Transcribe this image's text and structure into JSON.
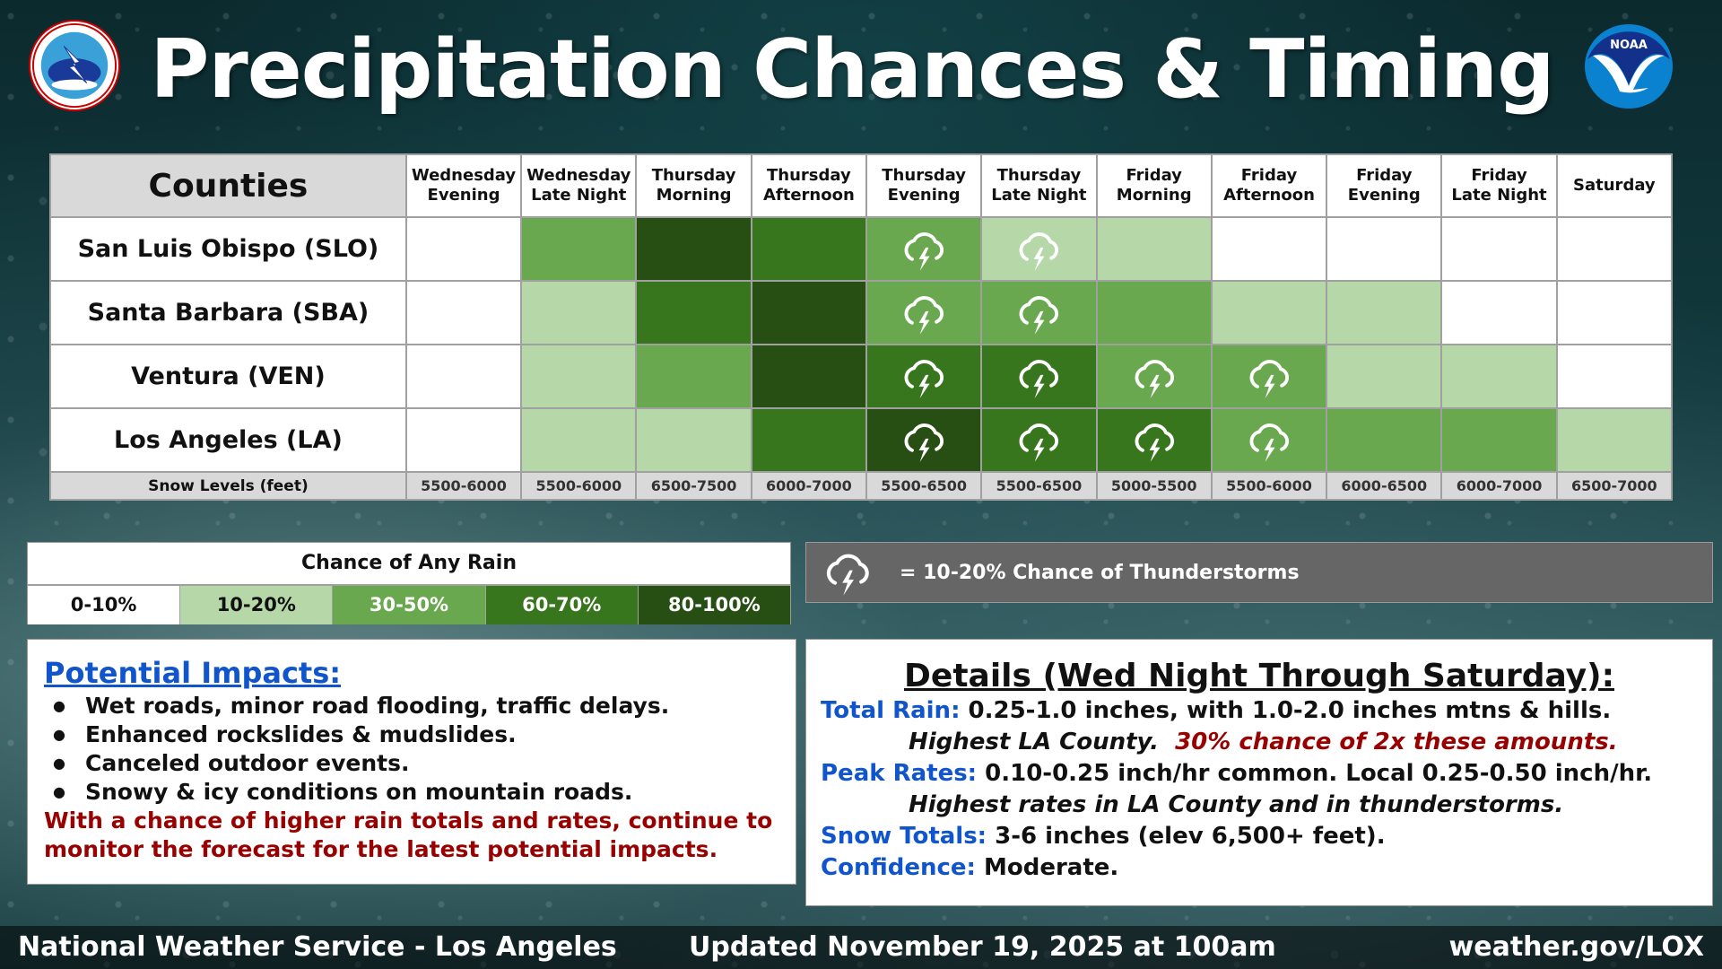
{
  "header": {
    "title": "Precipitation Chances & Timing",
    "left_logo": "nws-logo-icon",
    "right_logo": "noaa-logo-icon",
    "nws_logo_text": "NATIONAL WEATHER SERVICE",
    "noaa_logo_text": "NOAA"
  },
  "colors": {
    "level_0": "#ffffff",
    "level_1": "#b6d7a8",
    "level_2": "#6aa84f",
    "level_3": "#38761d",
    "level_4": "#274e13",
    "label_blue": "#1155cc",
    "warning_red": "#990000",
    "ts_legend_bg": "#666666"
  },
  "table": {
    "counties_header": "Counties",
    "periods": [
      {
        "line1": "Wednesday",
        "line2": "Evening"
      },
      {
        "line1": "Wednesday",
        "line2": "Late Night"
      },
      {
        "line1": "Thursday",
        "line2": "Morning"
      },
      {
        "line1": "Thursday",
        "line2": "Afternoon"
      },
      {
        "line1": "Thursday",
        "line2": "Evening"
      },
      {
        "line1": "Thursday",
        "line2": "Late Night"
      },
      {
        "line1": "Friday",
        "line2": "Morning"
      },
      {
        "line1": "Friday",
        "line2": "Afternoon"
      },
      {
        "line1": "Friday",
        "line2": "Evening"
      },
      {
        "line1": "Friday",
        "line2": "Late Night"
      },
      {
        "line1": "Saturday",
        "line2": ""
      }
    ],
    "rows": [
      {
        "county": "San Luis Obispo (SLO)",
        "levels": [
          0,
          2,
          4,
          3,
          2,
          1,
          1,
          0,
          0,
          0,
          0
        ],
        "tstorm": [
          0,
          0,
          0,
          0,
          1,
          1,
          0,
          0,
          0,
          0,
          0
        ]
      },
      {
        "county": "Santa Barbara (SBA)",
        "levels": [
          0,
          1,
          3,
          4,
          2,
          2,
          2,
          1,
          1,
          0,
          0
        ],
        "tstorm": [
          0,
          0,
          0,
          0,
          1,
          1,
          0,
          0,
          0,
          0,
          0
        ]
      },
      {
        "county": "Ventura (VEN)",
        "levels": [
          0,
          1,
          2,
          4,
          3,
          3,
          2,
          2,
          1,
          1,
          0
        ],
        "tstorm": [
          0,
          0,
          0,
          0,
          1,
          1,
          1,
          1,
          0,
          0,
          0
        ]
      },
      {
        "county": "Los Angeles (LA)",
        "levels": [
          0,
          1,
          1,
          3,
          4,
          3,
          3,
          2,
          2,
          2,
          1
        ],
        "tstorm": [
          0,
          0,
          0,
          0,
          1,
          1,
          1,
          1,
          0,
          0,
          0
        ]
      }
    ],
    "snow_label": "Snow Levels (feet)",
    "snow_levels": [
      "5500-6000",
      "5500-6000",
      "6500-7500",
      "6000-7000",
      "5500-6500",
      "5500-6500",
      "5000-5500",
      "5500-6000",
      "6000-6500",
      "6000-7000",
      "6500-7000"
    ]
  },
  "legend": {
    "title": "Chance of Any Rain",
    "items": [
      "0-10%",
      "10-20%",
      "30-50%",
      "60-70%",
      "80-100%"
    ]
  },
  "tstorm_legend": {
    "icon": "thunderstorm-icon",
    "text": "= 10-20% Chance of Thunderstorms"
  },
  "impacts": {
    "title": "Potential Impacts:",
    "bullets": [
      "Wet roads, minor road flooding, traffic delays.",
      "Enhanced rockslides & mudslides.",
      "Canceled outdoor events.",
      "Snowy & icy conditions on mountain roads."
    ],
    "warning": "With a chance of higher rain totals and rates, continue to monitor the forecast for the latest potential impacts."
  },
  "details": {
    "title": "Details (Wed Night Through Saturday):",
    "total_rain_label": "Total Rain:",
    "total_rain_value": " 0.25-1.0 inches, with 1.0-2.0 inches mtns & hills.",
    "total_rain_note": "Highest LA County.",
    "total_rain_note_red": "30% chance of 2x these amounts.",
    "peak_rates_label": "Peak Rates:",
    "peak_rates_value": " 0.10-0.25 inch/hr common. Local 0.25-0.50 inch/hr.",
    "peak_rates_note": "Highest rates in LA County and in thunderstorms.",
    "snow_totals_label": "Snow Totals:",
    "snow_totals_value": " 3-6 inches (elev 6,500+ feet).",
    "confidence_label": "Confidence:",
    "confidence_value": " Moderate."
  },
  "footer": {
    "office": "National Weather Service - Los Angeles",
    "updated": "Updated November 19, 2025 at 100am",
    "url": "weather.gov/LOX"
  },
  "chart_data": {
    "type": "heatmap",
    "title": "Precipitation Chances & Timing",
    "x": [
      "Wednesday Evening",
      "Wednesday Late Night",
      "Thursday Morning",
      "Thursday Afternoon",
      "Thursday Evening",
      "Thursday Late Night",
      "Friday Morning",
      "Friday Afternoon",
      "Friday Evening",
      "Friday Late Night",
      "Saturday"
    ],
    "y": [
      "San Luis Obispo (SLO)",
      "Santa Barbara (SBA)",
      "Ventura (VEN)",
      "Los Angeles (LA)"
    ],
    "legend": [
      "0-10%",
      "10-20%",
      "30-50%",
      "60-70%",
      "80-100%"
    ],
    "values": [
      [
        "0-10%",
        "30-50%",
        "80-100%",
        "60-70%",
        "30-50%",
        "10-20%",
        "10-20%",
        "0-10%",
        "0-10%",
        "0-10%",
        "0-10%"
      ],
      [
        "0-10%",
        "10-20%",
        "60-70%",
        "80-100%",
        "30-50%",
        "30-50%",
        "30-50%",
        "10-20%",
        "10-20%",
        "0-10%",
        "0-10%"
      ],
      [
        "0-10%",
        "10-20%",
        "30-50%",
        "80-100%",
        "60-70%",
        "60-70%",
        "30-50%",
        "30-50%",
        "10-20%",
        "10-20%",
        "0-10%"
      ],
      [
        "0-10%",
        "10-20%",
        "10-20%",
        "60-70%",
        "80-100%",
        "60-70%",
        "60-70%",
        "30-50%",
        "30-50%",
        "30-50%",
        "10-20%"
      ]
    ],
    "thunderstorm_10_20pct": [
      [
        false,
        false,
        false,
        false,
        true,
        true,
        false,
        false,
        false,
        false,
        false
      ],
      [
        false,
        false,
        false,
        false,
        true,
        true,
        false,
        false,
        false,
        false,
        false
      ],
      [
        false,
        false,
        false,
        false,
        true,
        true,
        true,
        true,
        false,
        false,
        false
      ],
      [
        false,
        false,
        false,
        false,
        true,
        true,
        true,
        true,
        false,
        false,
        false
      ]
    ],
    "snow_levels_feet": [
      "5500-6000",
      "5500-6000",
      "6500-7500",
      "6000-7000",
      "5500-6500",
      "5500-6500",
      "5000-5500",
      "5500-6000",
      "6000-6500",
      "6000-7000",
      "6500-7000"
    ]
  }
}
